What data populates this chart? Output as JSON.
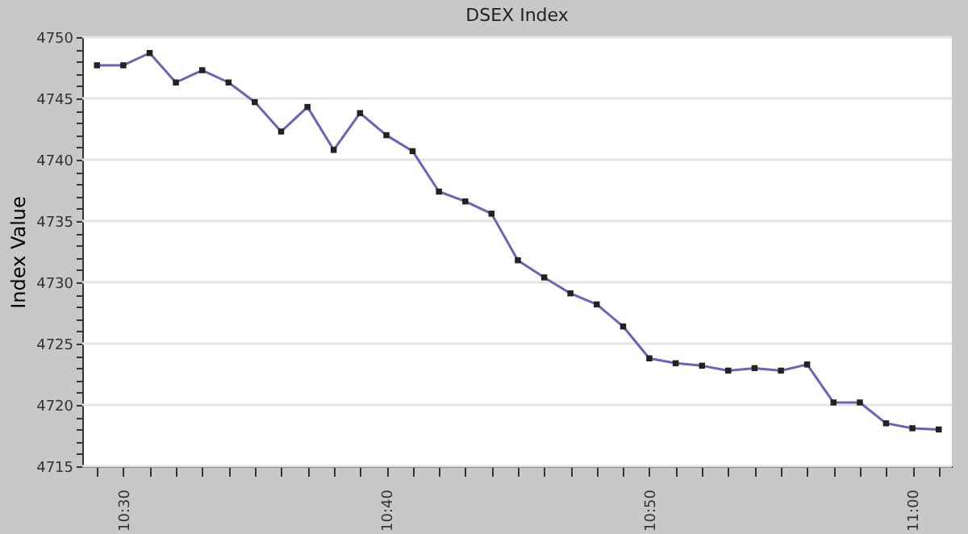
{
  "chart_data": {
    "type": "line",
    "title": "DSEX Index",
    "ylabel": "Index Value",
    "x": [
      10.4833,
      10.5,
      10.5167,
      10.5333,
      10.55,
      10.5667,
      10.5833,
      10.6,
      10.6167,
      10.6333,
      10.65,
      10.6667,
      10.6833,
      10.7,
      10.7167,
      10.7333,
      10.75,
      10.7667,
      10.7833,
      10.8,
      10.8167,
      10.8333,
      10.85,
      10.8667,
      10.8833,
      10.9,
      10.9167,
      10.9333,
      10.95,
      10.9667,
      10.9833,
      11.0,
      11.0167
    ],
    "series": [
      {
        "color": "#6b64b4",
        "values": [
          4747.7,
          4747.7,
          4748.7,
          4746.3,
          4747.3,
          4746.3,
          4744.7,
          4742.3,
          4744.3,
          4740.8,
          4743.8,
          4742.0,
          4740.7,
          4737.4,
          4736.6,
          4735.6,
          4731.8,
          4730.4,
          4729.1,
          4728.2,
          4726.4,
          4723.8,
          4723.4,
          4723.2,
          4722.8,
          4723.0,
          4722.8,
          4723.3,
          4720.2,
          4720.2,
          4718.5,
          4718.1,
          4718.0
        ]
      }
    ],
    "xlim": [
      10.474,
      11.025
    ],
    "xticks": [
      {
        "value": 10.4833,
        "label": null
      },
      {
        "value": 10.5,
        "label": "10:30"
      },
      {
        "value": 10.5167,
        "label": null
      },
      {
        "value": 10.5333,
        "label": null
      },
      {
        "value": 10.55,
        "label": null
      },
      {
        "value": 10.5667,
        "label": null
      },
      {
        "value": 10.5833,
        "label": null
      },
      {
        "value": 10.6,
        "label": null
      },
      {
        "value": 10.6167,
        "label": null
      },
      {
        "value": 10.6333,
        "label": null
      },
      {
        "value": 10.65,
        "label": null
      },
      {
        "value": 10.6667,
        "label": "10:40"
      },
      {
        "value": 10.6833,
        "label": null
      },
      {
        "value": 10.7,
        "label": null
      },
      {
        "value": 10.7167,
        "label": null
      },
      {
        "value": 10.7333,
        "label": null
      },
      {
        "value": 10.75,
        "label": null
      },
      {
        "value": 10.7667,
        "label": null
      },
      {
        "value": 10.7833,
        "label": null
      },
      {
        "value": 10.8,
        "label": null
      },
      {
        "value": 10.8167,
        "label": null
      },
      {
        "value": 10.8333,
        "label": "10:50"
      },
      {
        "value": 10.85,
        "label": null
      },
      {
        "value": 10.8667,
        "label": null
      },
      {
        "value": 10.8833,
        "label": null
      },
      {
        "value": 10.9,
        "label": null
      },
      {
        "value": 10.9167,
        "label": null
      },
      {
        "value": 10.9333,
        "label": null
      },
      {
        "value": 10.95,
        "label": null
      },
      {
        "value": 10.9667,
        "label": null
      },
      {
        "value": 10.9833,
        "label": null
      },
      {
        "value": 11.0,
        "label": "11:00"
      },
      {
        "value": 11.0167,
        "label": null
      }
    ],
    "ylim": [
      4715,
      4750
    ],
    "yticks": [
      4715,
      {
        "value": 4716,
        "label": null
      },
      {
        "value": 4717,
        "label": null
      },
      {
        "value": 4718,
        "label": null
      },
      {
        "value": 4719,
        "label": null
      },
      4720,
      {
        "value": 4721,
        "label": null
      },
      {
        "value": 4722,
        "label": null
      },
      {
        "value": 4723,
        "label": null
      },
      {
        "value": 4724,
        "label": null
      },
      4725,
      {
        "value": 4726,
        "label": null
      },
      {
        "value": 4727,
        "label": null
      },
      {
        "value": 4728,
        "label": null
      },
      {
        "value": 4729,
        "label": null
      },
      4730,
      {
        "value": 4731,
        "label": null
      },
      {
        "value": 4732,
        "label": null
      },
      {
        "value": 4733,
        "label": null
      },
      {
        "value": 4734,
        "label": null
      },
      4735,
      {
        "value": 4736,
        "label": null
      },
      {
        "value": 4737,
        "label": null
      },
      {
        "value": 4738,
        "label": null
      },
      {
        "value": 4739,
        "label": null
      },
      4740,
      {
        "value": 4741,
        "label": null
      },
      {
        "value": 4742,
        "label": null
      },
      {
        "value": 4743,
        "label": null
      },
      {
        "value": 4744,
        "label": null
      },
      4745,
      {
        "value": 4746,
        "label": null
      },
      {
        "value": 4747,
        "label": null
      },
      {
        "value": 4748,
        "label": null
      },
      {
        "value": 4749,
        "label": null
      },
      4750
    ],
    "grid": "y",
    "marker": "square",
    "line_style": "solid"
  }
}
